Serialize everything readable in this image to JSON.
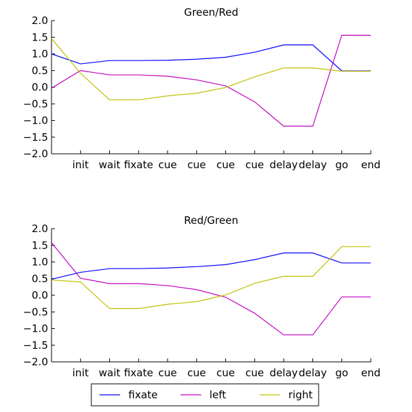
{
  "chart_data": [
    {
      "type": "line",
      "title": "Green/Red",
      "xlabel": "",
      "ylabel": "",
      "ylim": [
        -2.0,
        2.0
      ],
      "yticks": [
        "2.0",
        "1.5",
        "1.0",
        "0.5",
        "0.0",
        "−0.5",
        "−1.0",
        "−1.5",
        "−2.0"
      ],
      "ytick_values": [
        2.0,
        1.5,
        1.0,
        0.5,
        0.0,
        -0.5,
        -1.0,
        -1.5,
        -2.0
      ],
      "x": [
        0,
        1,
        2,
        3,
        4,
        5,
        6,
        7,
        8,
        9,
        10,
        11
      ],
      "xlim": [
        0,
        11
      ],
      "xtick_positions": [
        1,
        2,
        3,
        4,
        5,
        6,
        7,
        8,
        9,
        10,
        11
      ],
      "xtick_labels": [
        "init",
        "wait",
        "fixate",
        "cue",
        "cue",
        "cue",
        "cue",
        "delay",
        "delay",
        "go",
        "end"
      ],
      "grid": false,
      "series": [
        {
          "name": "fixate",
          "color": "#0000ff",
          "values": [
            1.0,
            0.7,
            0.8,
            0.8,
            0.81,
            0.84,
            0.9,
            1.05,
            1.27,
            1.27,
            0.49,
            0.49
          ]
        },
        {
          "name": "left",
          "color": "#bf00bf",
          "values": [
            -0.03,
            0.5,
            0.37,
            0.37,
            0.33,
            0.22,
            0.04,
            -0.44,
            -1.17,
            -1.17,
            1.56,
            1.56
          ]
        },
        {
          "name": "right",
          "color": "#bfbf00",
          "values": [
            1.46,
            0.42,
            -0.38,
            -0.38,
            -0.26,
            -0.18,
            -0.01,
            0.31,
            0.58,
            0.58,
            0.48,
            0.48
          ]
        }
      ]
    },
    {
      "type": "line",
      "title": "Red/Green",
      "xlabel": "",
      "ylabel": "",
      "ylim": [
        -2.0,
        2.0
      ],
      "yticks": [
        "2.0",
        "1.5",
        "1.0",
        "0.5",
        "0.0",
        "−0.5",
        "−1.0",
        "−1.5",
        "−2.0"
      ],
      "ytick_values": [
        2.0,
        1.5,
        1.0,
        0.5,
        0.0,
        -0.5,
        -1.0,
        -1.5,
        -2.0
      ],
      "x": [
        0,
        1,
        2,
        3,
        4,
        5,
        6,
        7,
        8,
        9,
        10,
        11
      ],
      "xlim": [
        0,
        11
      ],
      "xtick_positions": [
        1,
        2,
        3,
        4,
        5,
        6,
        7,
        8,
        9,
        10,
        11
      ],
      "xtick_labels": [
        "init",
        "wait",
        "fixate",
        "cue",
        "cue",
        "cue",
        "cue",
        "delay",
        "delay",
        "go",
        "end"
      ],
      "grid": false,
      "series": [
        {
          "name": "fixate",
          "color": "#0000ff",
          "values": [
            0.48,
            0.69,
            0.8,
            0.8,
            0.82,
            0.86,
            0.92,
            1.07,
            1.27,
            1.27,
            0.97,
            0.97
          ]
        },
        {
          "name": "left",
          "color": "#bf00bf",
          "values": [
            1.58,
            0.51,
            0.35,
            0.35,
            0.29,
            0.17,
            -0.06,
            -0.54,
            -1.19,
            -1.19,
            -0.05,
            -0.05
          ]
        },
        {
          "name": "right",
          "color": "#bfbf00",
          "values": [
            0.46,
            0.4,
            -0.4,
            -0.4,
            -0.27,
            -0.19,
            0.01,
            0.36,
            0.57,
            0.57,
            1.46,
            1.46
          ]
        }
      ]
    }
  ],
  "legend": {
    "placement": "bottom-center",
    "entries": [
      {
        "label": "fixate",
        "color": "#0000ff"
      },
      {
        "label": "left",
        "color": "#bf00bf"
      },
      {
        "label": "right",
        "color": "#bfbf00"
      }
    ]
  }
}
